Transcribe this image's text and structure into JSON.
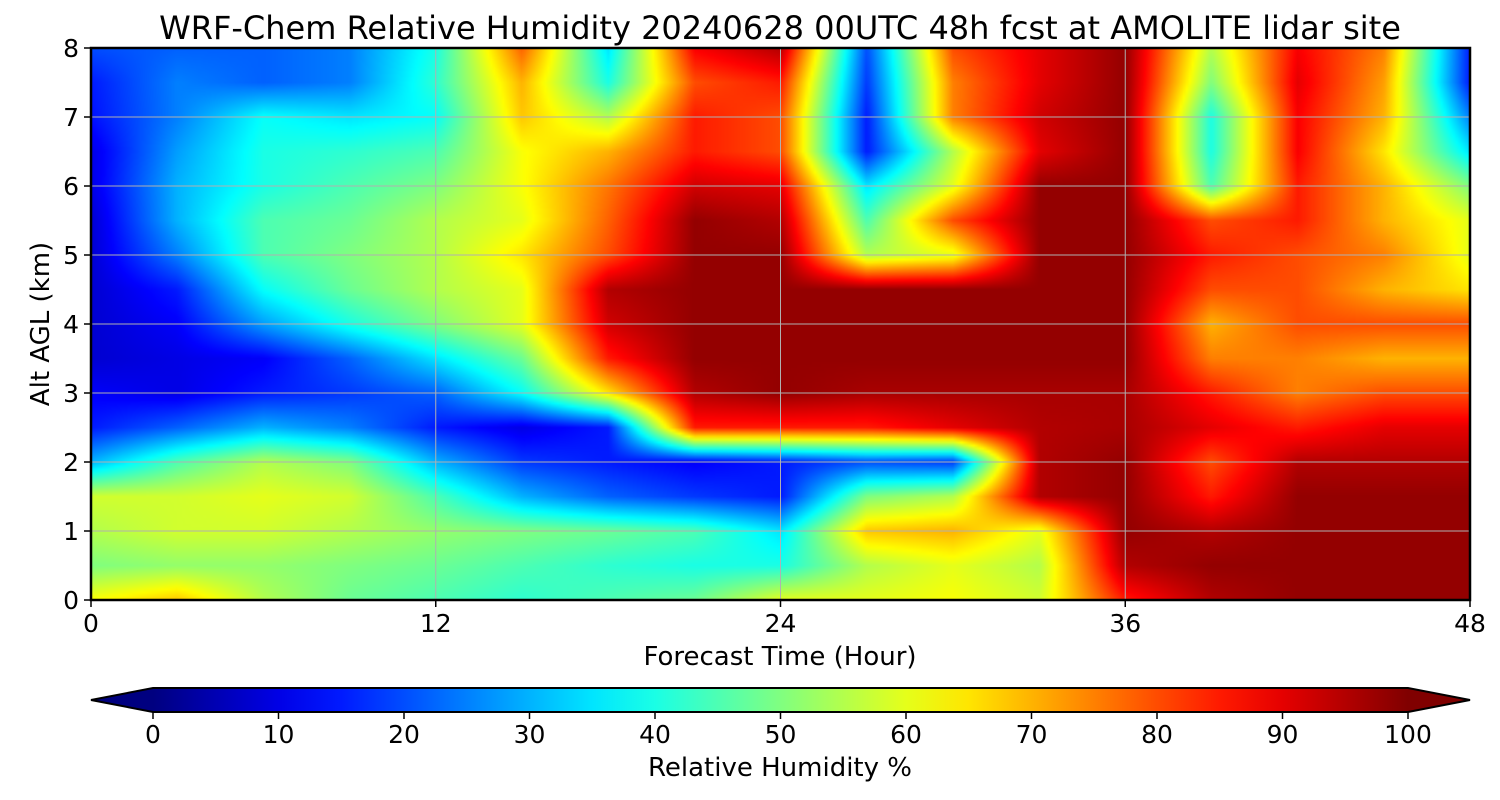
{
  "chart_data": {
    "type": "heatmap",
    "title": "WRF-Chem Relative Humidity 20240628 00UTC 48h fcst at AMOLITE lidar site",
    "xlabel": "Forecast Time (Hour)",
    "ylabel": "Alt AGL (km)",
    "xlim": [
      0,
      48
    ],
    "ylim": [
      0,
      8
    ],
    "x_ticks": [
      "0",
      "12",
      "24",
      "36",
      "48"
    ],
    "y_ticks": [
      "0",
      "1",
      "2",
      "3",
      "4",
      "5",
      "6",
      "7",
      "8"
    ],
    "grid": true,
    "colorbar": {
      "label": "Relative Humidity %",
      "ticks": [
        "0",
        "10",
        "20",
        "30",
        "40",
        "50",
        "60",
        "70",
        "80",
        "90",
        "100"
      ],
      "range": [
        0,
        100
      ],
      "extend": "both",
      "colormap": "jet"
    },
    "grid_x_hours": [
      0,
      3,
      6,
      9,
      12,
      15,
      18,
      21,
      24,
      27,
      30,
      33,
      36,
      39,
      42,
      45,
      48
    ],
    "grid_z_km": [
      0,
      0.5,
      1,
      1.5,
      2,
      2.5,
      3,
      3.5,
      4,
      4.5,
      5,
      5.5,
      6,
      6.5,
      7,
      7.5,
      8
    ],
    "rh_percent": [
      [
        62,
        68,
        55,
        48,
        45,
        42,
        45,
        48,
        60,
        60,
        62,
        58,
        85,
        95,
        98,
        98,
        98
      ],
      [
        50,
        52,
        52,
        50,
        48,
        45,
        42,
        40,
        40,
        55,
        60,
        55,
        95,
        98,
        98,
        98,
        98
      ],
      [
        55,
        58,
        58,
        55,
        52,
        50,
        48,
        45,
        35,
        68,
        70,
        60,
        98,
        95,
        98,
        98,
        98
      ],
      [
        58,
        58,
        60,
        58,
        45,
        30,
        22,
        18,
        15,
        50,
        55,
        95,
        98,
        85,
        98,
        98,
        98
      ],
      [
        30,
        45,
        55,
        50,
        30,
        18,
        15,
        12,
        15,
        20,
        18,
        95,
        98,
        80,
        95,
        95,
        95
      ],
      [
        15,
        22,
        30,
        25,
        15,
        10,
        15,
        85,
        85,
        85,
        90,
        95,
        96,
        90,
        85,
        90,
        90
      ],
      [
        12,
        10,
        15,
        18,
        22,
        38,
        65,
        95,
        98,
        96,
        96,
        96,
        96,
        85,
        75,
        80,
        80
      ],
      [
        8,
        10,
        12,
        22,
        35,
        48,
        85,
        98,
        98,
        98,
        98,
        98,
        98,
        75,
        75,
        70,
        70
      ],
      [
        8,
        12,
        28,
        40,
        50,
        60,
        92,
        98,
        98,
        98,
        98,
        98,
        98,
        70,
        80,
        80,
        80
      ],
      [
        8,
        15,
        38,
        48,
        55,
        60,
        95,
        98,
        98,
        98,
        98,
        98,
        98,
        80,
        80,
        70,
        65
      ],
      [
        8,
        25,
        45,
        50,
        55,
        65,
        80,
        98,
        98,
        55,
        60,
        98,
        98,
        85,
        80,
        75,
        60
      ],
      [
        8,
        30,
        45,
        48,
        55,
        60,
        78,
        98,
        95,
        45,
        80,
        98,
        98,
        80,
        85,
        70,
        60
      ],
      [
        10,
        30,
        40,
        45,
        50,
        62,
        76,
        92,
        90,
        35,
        60,
        98,
        98,
        45,
        85,
        70,
        50
      ],
      [
        10,
        28,
        40,
        42,
        45,
        62,
        70,
        85,
        80,
        15,
        55,
        90,
        98,
        40,
        88,
        65,
        35
      ],
      [
        14,
        25,
        38,
        35,
        38,
        68,
        55,
        85,
        80,
        15,
        75,
        92,
        98,
        40,
        88,
        70,
        25
      ],
      [
        15,
        25,
        22,
        25,
        42,
        70,
        40,
        80,
        85,
        18,
        75,
        90,
        98,
        50,
        90,
        72,
        15
      ],
      [
        20,
        22,
        22,
        25,
        40,
        78,
        35,
        88,
        95,
        20,
        80,
        90,
        98,
        55,
        88,
        75,
        15
      ]
    ]
  }
}
